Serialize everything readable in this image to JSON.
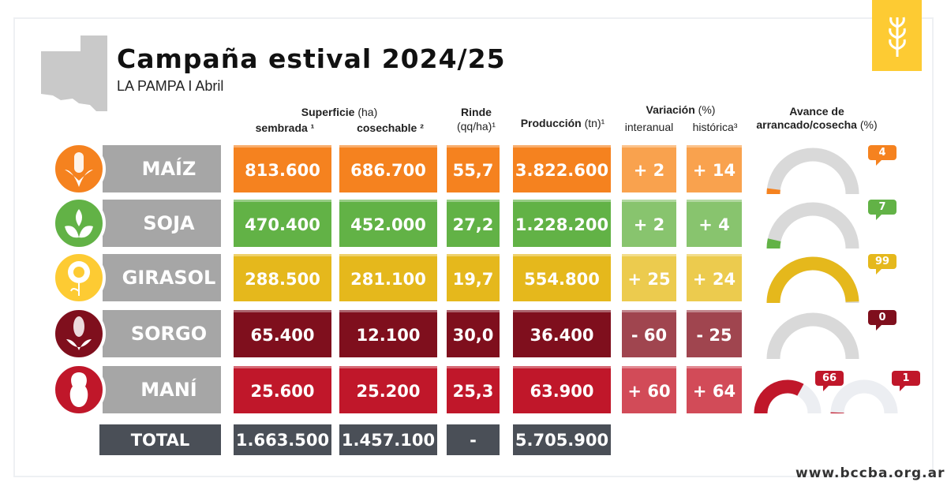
{
  "header": {
    "title": "Campaña estival 2024/25",
    "subtitle": "LA PAMPA I Abril"
  },
  "columns": {
    "superficie": "Superficie",
    "superficie_unit": " (ha)",
    "sembrada": "sembrada ¹",
    "cosechable": "cosechable ²",
    "rinde": "Rinde",
    "rinde_unit": "(qq/ha)¹",
    "produccion": "Producción",
    "produccion_unit": " (tn)¹",
    "variacion": "Variación",
    "variacion_unit": " (%)",
    "interanual": "interanual",
    "historica": "histórica³",
    "avance": "Avance de",
    "avance2": "arrancado/cosecha",
    "avance_unit": " (%)"
  },
  "rows": [
    {
      "name": "MAÍZ",
      "icon": "corn-icon",
      "color": "#f5821f",
      "var_color": "#f9a24e",
      "sembrada": "813.600",
      "cosechable": "686.700",
      "rinde": "55,7",
      "produccion": "3.822.600",
      "interanual": "+ 2",
      "historica": "+ 14",
      "avance": [
        4
      ]
    },
    {
      "name": "SOJA",
      "icon": "soy-plant-icon",
      "color": "#62b246",
      "var_color": "#88c46e",
      "sembrada": "470.400",
      "cosechable": "452.000",
      "rinde": "27,2",
      "produccion": "1.228.200",
      "interanual": "+ 2",
      "historica": "+ 4",
      "avance": [
        7
      ]
    },
    {
      "name": "GIRASOL",
      "icon": "sunflower-icon",
      "color": "#e5b81c",
      "var_color": "#eccb4e",
      "sembrada": "288.500",
      "cosechable": "281.100",
      "rinde": "19,7",
      "produccion": "554.800",
      "interanual": "+ 25",
      "historica": "+ 24",
      "avance": [
        99
      ]
    },
    {
      "name": "SORGO",
      "icon": "sorghum-icon",
      "color": "#7f0f1d",
      "var_color": "#a0454f",
      "sembrada": "65.400",
      "cosechable": "12.100",
      "rinde": "30,0",
      "produccion": "36.400",
      "interanual": "- 60",
      "historica": "- 25",
      "avance": [
        0
      ]
    },
    {
      "name": "MANÍ",
      "icon": "peanut-icon",
      "color": "#c0172a",
      "var_color": "#d24b58",
      "sembrada": "25.600",
      "cosechable": "25.200",
      "rinde": "25,3",
      "produccion": "63.900",
      "interanual": "+ 60",
      "historica": "+ 64",
      "avance": [
        66,
        1
      ]
    }
  ],
  "total": {
    "label": "TOTAL",
    "sembrada": "1.663.500",
    "cosechable": "1.457.100",
    "rinde": "-",
    "produccion": "5.705.900"
  },
  "footer": {
    "url": "www.bccba.org.ar"
  },
  "colors": {
    "total": "#4a4f57",
    "label_grey": "#a6a6a6",
    "logo": "#fdcb33"
  }
}
